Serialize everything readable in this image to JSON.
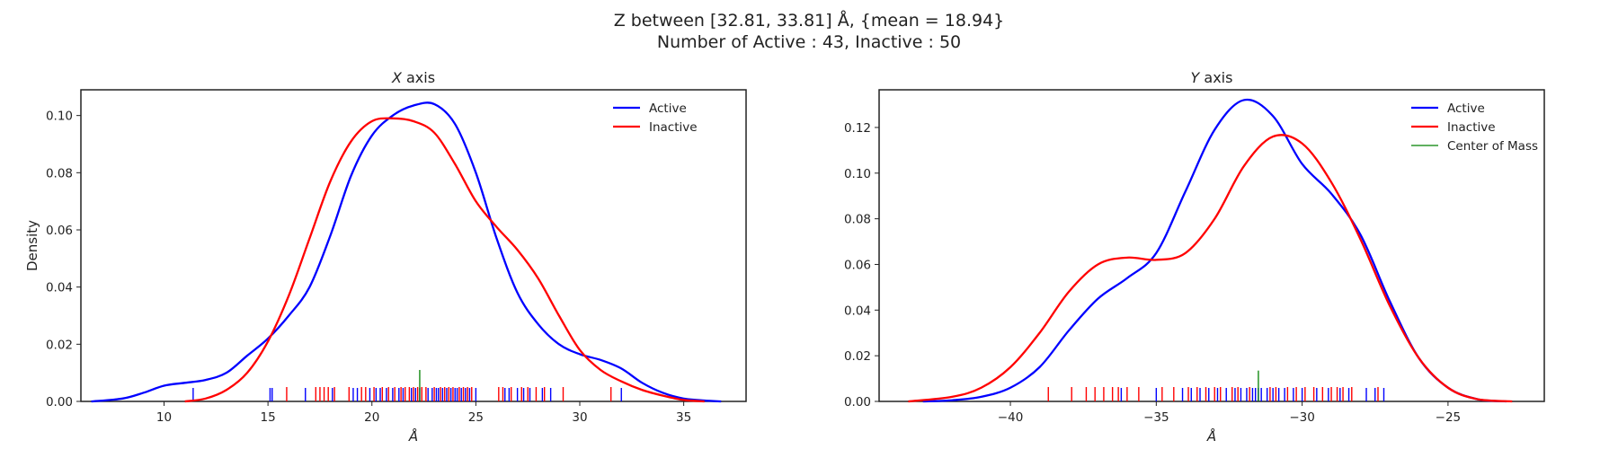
{
  "figure": {
    "title_line1": "Z between [32.81, 33.81] Å, {mean = 18.94}",
    "title_line2": "Number of Active : 43, Inactive : 50"
  },
  "colors": {
    "active": "#0000ff",
    "inactive": "#ff0000",
    "center": "#008000"
  },
  "chart_data": [
    {
      "type": "line",
      "title": "X axis",
      "xlabel": "Å",
      "ylabel": "Density",
      "xlim": [
        6,
        38
      ],
      "ylim": [
        0,
        0.109
      ],
      "xticks": [
        10,
        15,
        20,
        25,
        30,
        35
      ],
      "yticks": [
        0.0,
        0.02,
        0.04,
        0.06,
        0.08,
        0.1
      ],
      "ytick_decimals": 2,
      "legend": {
        "position": "top-right",
        "entries": [
          "Active",
          "Inactive"
        ]
      },
      "series": [
        {
          "name": "Active",
          "color": "#0000ff",
          "x": [
            6.5,
            8,
            9,
            10,
            11,
            12,
            13,
            14,
            15,
            16,
            17,
            18,
            19,
            20,
            21,
            22,
            23,
            24,
            25,
            26,
            27,
            28,
            29,
            30,
            31,
            32,
            33,
            34,
            35,
            36,
            36.8
          ],
          "y": [
            0.0,
            0.001,
            0.003,
            0.0055,
            0.0065,
            0.0075,
            0.01,
            0.016,
            0.022,
            0.03,
            0.04,
            0.058,
            0.079,
            0.093,
            0.1,
            0.1035,
            0.104,
            0.097,
            0.08,
            0.057,
            0.038,
            0.027,
            0.02,
            0.0165,
            0.0145,
            0.0115,
            0.0065,
            0.003,
            0.001,
            0.0003,
            0.0
          ]
        },
        {
          "name": "Inactive",
          "color": "#ff0000",
          "x": [
            11,
            12,
            13,
            14,
            15,
            16,
            17,
            18,
            19,
            20,
            21,
            22,
            23,
            24,
            25,
            26,
            27,
            28,
            29,
            30,
            31,
            32,
            33,
            34,
            35,
            36
          ],
          "y": [
            0.0,
            0.001,
            0.004,
            0.01,
            0.021,
            0.037,
            0.057,
            0.077,
            0.091,
            0.098,
            0.099,
            0.098,
            0.094,
            0.083,
            0.07,
            0.061,
            0.053,
            0.043,
            0.03,
            0.018,
            0.011,
            0.007,
            0.004,
            0.002,
            0.0005,
            0.0
          ]
        }
      ],
      "rug": [
        {
          "name": "Active",
          "color": "#0000ff",
          "values": [
            11.4,
            15.1,
            15.2,
            16.8,
            18.1,
            19.1,
            19.3,
            19.9,
            20.2,
            20.4,
            20.7,
            21.0,
            21.3,
            21.5,
            21.9,
            22.1,
            22.3,
            22.7,
            22.9,
            23.1,
            23.2,
            23.4,
            23.6,
            23.8,
            24.0,
            24.1,
            24.3,
            24.5,
            24.7,
            25.0,
            26.4,
            26.6,
            27.0,
            27.3,
            27.6,
            28.2,
            28.6,
            32.0
          ]
        },
        {
          "name": "Inactive",
          "color": "#ff0000",
          "values": [
            15.9,
            17.3,
            17.5,
            17.7,
            17.9,
            18.2,
            18.9,
            19.5,
            19.7,
            20.1,
            20.5,
            20.8,
            21.1,
            21.4,
            21.6,
            21.8,
            22.0,
            22.2,
            22.4,
            22.6,
            23.0,
            23.3,
            23.5,
            23.7,
            23.9,
            24.2,
            24.4,
            24.6,
            24.8,
            26.1,
            26.3,
            26.7,
            27.2,
            27.5,
            27.9,
            28.3,
            29.2,
            31.5
          ]
        }
      ],
      "center_of_mass": {
        "value": 22.3,
        "height": 0.011,
        "color": "#008000"
      }
    },
    {
      "type": "line",
      "title": "Y axis",
      "xlabel": "Å",
      "ylabel": "",
      "xlim": [
        -44.5,
        -21.7
      ],
      "ylim": [
        0,
        0.1365
      ],
      "xticks": [
        -40,
        -35,
        -30,
        -25
      ],
      "yticks": [
        0.0,
        0.02,
        0.04,
        0.06,
        0.08,
        0.1,
        0.12
      ],
      "ytick_decimals": 2,
      "legend": {
        "position": "top-right",
        "entries": [
          "Active",
          "Inactive",
          "Center of Mass"
        ]
      },
      "series": [
        {
          "name": "Active",
          "color": "#0000ff",
          "x": [
            -43,
            -42,
            -41,
            -40,
            -39,
            -38,
            -37,
            -36,
            -35,
            -34,
            -33,
            -32,
            -31,
            -30,
            -29,
            -28,
            -27,
            -26,
            -25,
            -24,
            -23
          ],
          "y": [
            0.0,
            0.0005,
            0.002,
            0.006,
            0.015,
            0.031,
            0.045,
            0.054,
            0.065,
            0.092,
            0.119,
            0.132,
            0.125,
            0.104,
            0.091,
            0.073,
            0.044,
            0.019,
            0.006,
            0.001,
            0.0
          ]
        },
        {
          "name": "Inactive",
          "color": "#ff0000",
          "x": [
            -43.5,
            -42,
            -41,
            -40,
            -39,
            -38,
            -37,
            -36,
            -35,
            -34,
            -33,
            -32,
            -31,
            -30,
            -29,
            -28,
            -27,
            -26,
            -25,
            -24,
            -22.8
          ],
          "y": [
            0.0,
            0.002,
            0.006,
            0.015,
            0.03,
            0.048,
            0.06,
            0.063,
            0.062,
            0.065,
            0.08,
            0.103,
            0.116,
            0.113,
            0.096,
            0.071,
            0.042,
            0.019,
            0.006,
            0.001,
            0.0
          ]
        }
      ],
      "rug": [
        {
          "name": "Active",
          "color": "#0000ff",
          "values": [
            -36.2,
            -35.0,
            -34.1,
            -33.8,
            -33.5,
            -33.2,
            -32.9,
            -32.6,
            -32.3,
            -32.1,
            -31.9,
            -31.7,
            -31.6,
            -31.5,
            -31.4,
            -31.2,
            -31.0,
            -30.8,
            -30.6,
            -30.3,
            -30.0,
            -29.5,
            -29.1,
            -28.7,
            -28.4,
            -27.8,
            -27.5,
            -27.2
          ]
        },
        {
          "name": "Inactive",
          "color": "#ff0000",
          "values": [
            -38.7,
            -37.9,
            -37.4,
            -37.1,
            -36.8,
            -36.5,
            -36.3,
            -36.0,
            -35.6,
            -34.8,
            -34.4,
            -33.9,
            -33.6,
            -33.3,
            -33.0,
            -32.8,
            -32.4,
            -32.2,
            -31.8,
            -31.1,
            -30.9,
            -30.5,
            -30.2,
            -29.9,
            -29.6,
            -29.3,
            -29.0,
            -28.8,
            -28.6,
            -28.3,
            -27.4
          ]
        }
      ],
      "center_of_mass": {
        "value": -31.5,
        "height": 0.0135,
        "color": "#008000"
      }
    }
  ]
}
